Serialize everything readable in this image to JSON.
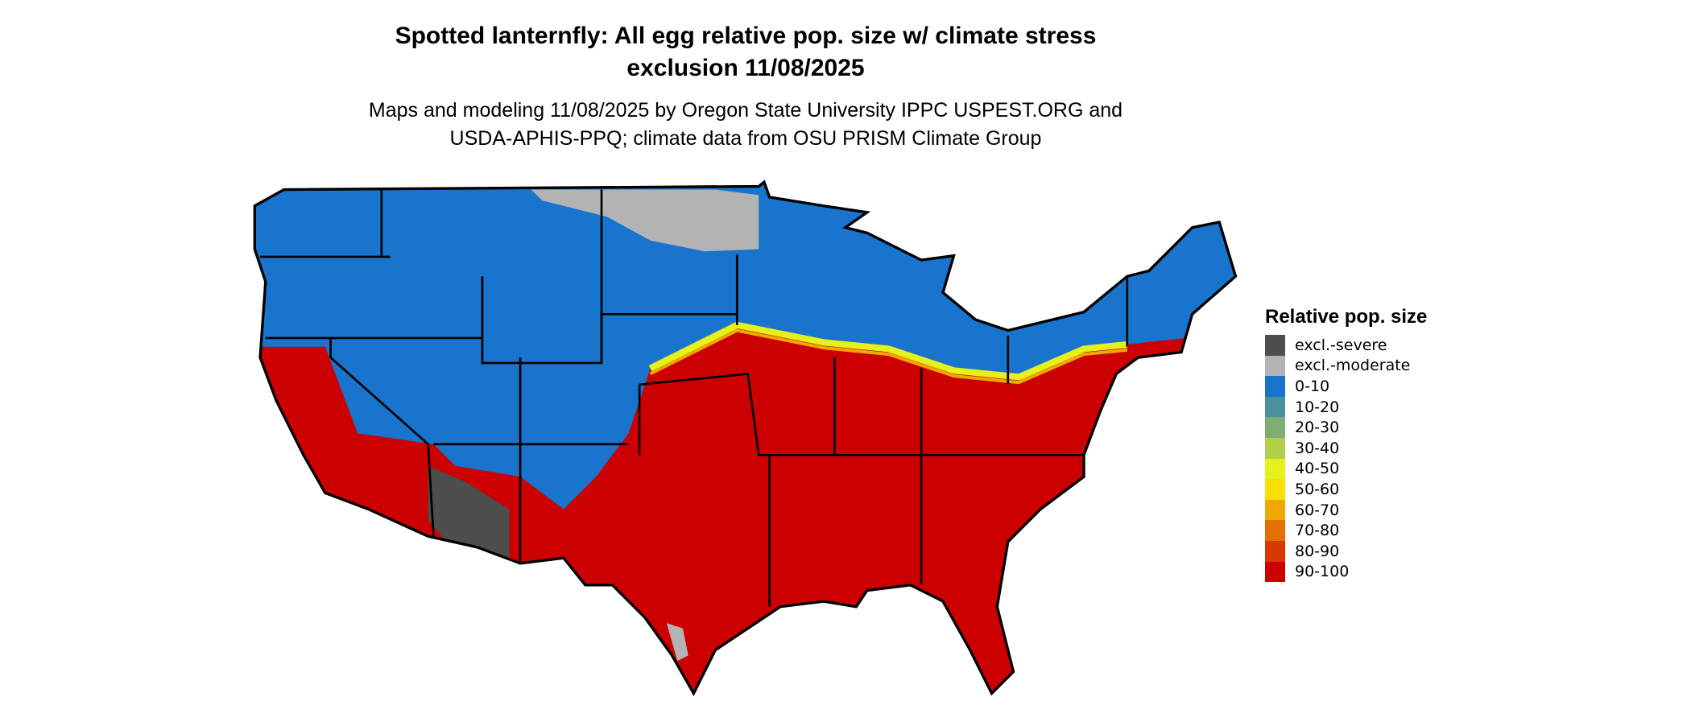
{
  "title_line1": "Spotted lanternfly: All egg relative pop. size w/ climate stress",
  "title_line2": "exclusion 11/08/2025",
  "subtitle_line1": "Maps and modeling 11/08/2025 by Oregon State University IPPC USPEST.ORG and",
  "subtitle_line2": "USDA-APHIS-PPQ; climate data from OSU PRISM Climate Group",
  "legend": {
    "title": "Relative pop. size",
    "items": [
      {
        "label": "excl.-severe",
        "color": "#4d4d4d"
      },
      {
        "label": "excl.-moderate",
        "color": "#b3b3b3"
      },
      {
        "label": "0-10",
        "color": "#1874cd"
      },
      {
        "label": "10-20",
        "color": "#4a90a0"
      },
      {
        "label": "20-30",
        "color": "#7fae74"
      },
      {
        "label": "30-40",
        "color": "#b3cf48"
      },
      {
        "label": "40-50",
        "color": "#e6f01a"
      },
      {
        "label": "50-60",
        "color": "#f8e000"
      },
      {
        "label": "60-70",
        "color": "#f0a800"
      },
      {
        "label": "70-80",
        "color": "#e47000"
      },
      {
        "label": "80-90",
        "color": "#d83800"
      },
      {
        "label": "90-100",
        "color": "#cc0000"
      }
    ]
  },
  "map": {
    "region": "Contiguous United States",
    "dominant_north": "0-10",
    "dominant_south": "90-100"
  }
}
